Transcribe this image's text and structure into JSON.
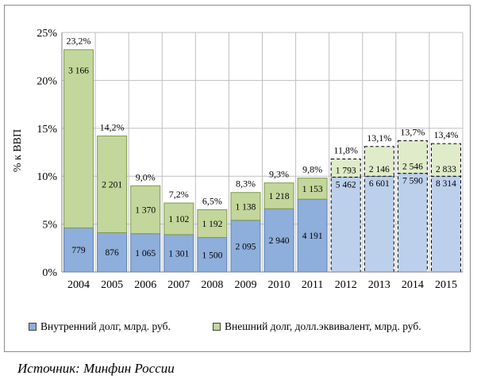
{
  "chart_data": {
    "type": "bar",
    "stacked": true,
    "categories": [
      "2004",
      "2005",
      "2006",
      "2007",
      "2008",
      "2009",
      "2010",
      "2011",
      "2012",
      "2013",
      "2014",
      "2015"
    ],
    "ylabel": "% к ВВП",
    "ylim": [
      0,
      25
    ],
    "yticks": [
      "0%",
      "5%",
      "10%",
      "15%",
      "20%",
      "25%"
    ],
    "grid": true,
    "legend_position": "bottom",
    "forecast_from_index": 8,
    "totals_pct": [
      23.2,
      14.2,
      9.0,
      7.2,
      6.5,
      8.3,
      9.3,
      9.8,
      11.8,
      13.1,
      13.7,
      13.4
    ],
    "totals_labels": [
      "23,2%",
      "14,2%",
      "9,0%",
      "7,2%",
      "6,5%",
      "8,3%",
      "9,3%",
      "9,8%",
      "11,8%",
      "13,1%",
      "13,7%",
      "13,4%"
    ],
    "series": [
      {
        "name": "Внутренний долг, млрд. руб.",
        "color": "#8eaedb",
        "forecast_color": "#bcd0ec",
        "values_pct": [
          4.6,
          4.1,
          4.0,
          3.9,
          3.6,
          5.4,
          6.6,
          7.6,
          9.9,
          10.0,
          10.3,
          10.0
        ],
        "labels": [
          "779",
          "876",
          "1 065",
          "1 301",
          "1 500",
          "2 095",
          "2 940",
          "4 191",
          "5 462",
          "6 601",
          "7 590",
          "8 314"
        ]
      },
      {
        "name": "Внешний долг, долл.эквивалент, млрд. руб.",
        "color": "#c3d69b",
        "forecast_color": "#e0ebc9",
        "values_pct": [
          18.6,
          10.1,
          5.0,
          3.3,
          2.9,
          2.9,
          2.7,
          2.2,
          1.9,
          3.1,
          3.4,
          3.4
        ],
        "labels": [
          "3 166",
          "2 201",
          "1 370",
          "1 102",
          "1 192",
          "1 138",
          "1 218",
          "1 153",
          "1 793",
          "2 146",
          "2 546",
          "2 833"
        ]
      }
    ]
  },
  "source_note": "Источник: Минфин России"
}
